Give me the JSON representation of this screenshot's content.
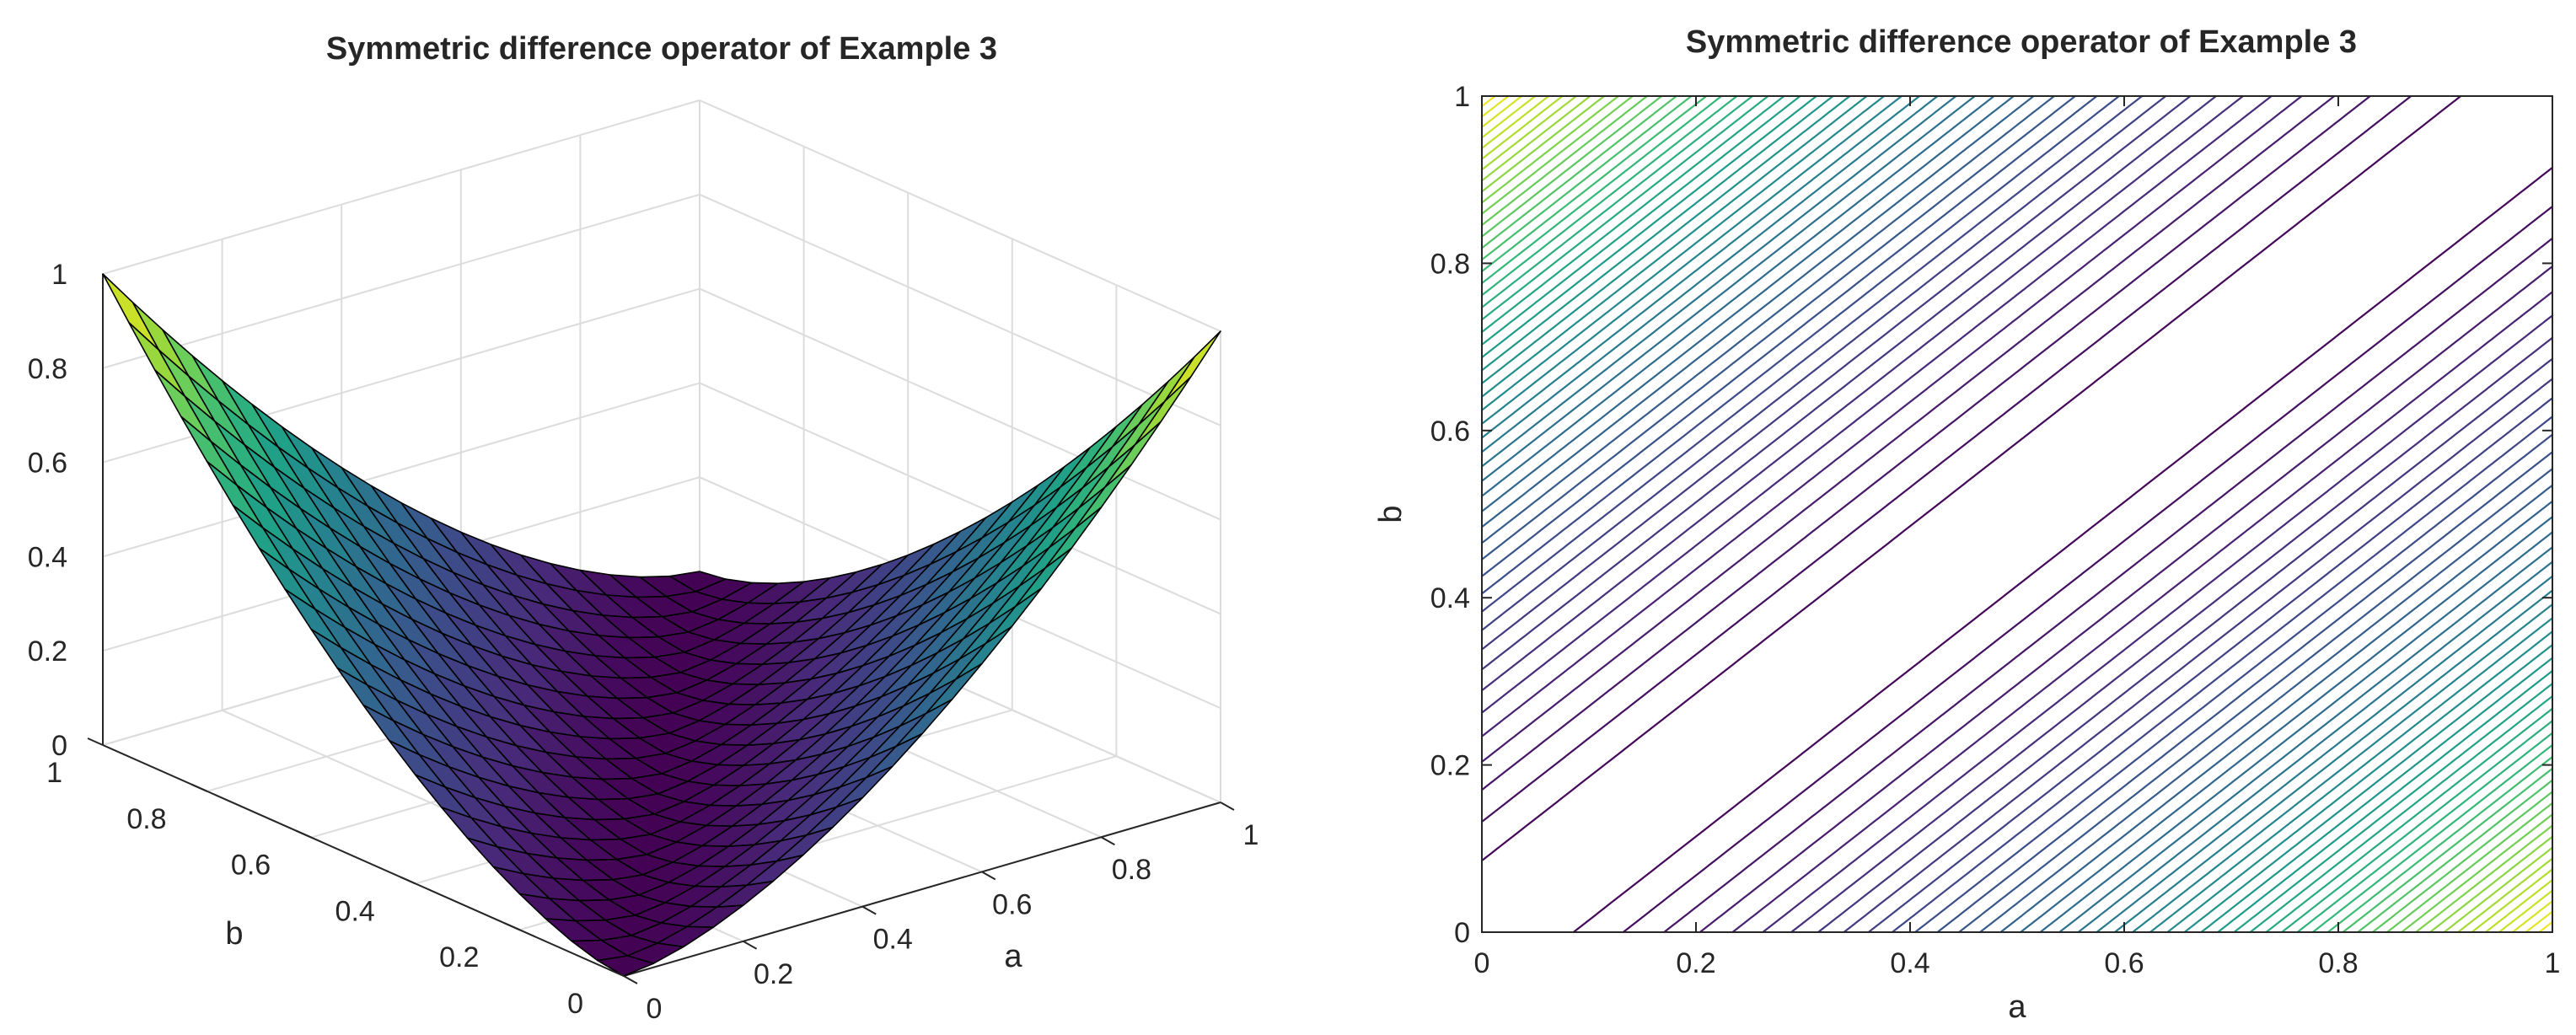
{
  "chart_data": [
    {
      "type": "surface",
      "title": "Symmetric difference operator of Example 3",
      "xlabel": "a",
      "ylabel": "b",
      "zlabel": "",
      "xlim": [
        0,
        1
      ],
      "ylim": [
        0,
        1
      ],
      "zlim": [
        0,
        1
      ],
      "x_ticks": [
        "0",
        "0.2",
        "0.4",
        "0.6",
        "0.8",
        "1"
      ],
      "y_ticks": [
        "0",
        "0.2",
        "0.4",
        "0.6",
        "0.8",
        "1"
      ],
      "z_ticks": [
        "0",
        "0.2",
        "0.4",
        "0.6",
        "0.8",
        "1"
      ],
      "grid": true,
      "grid_steps": 20,
      "colormap": [
        "#440154",
        "#482878",
        "#3e4989",
        "#31688e",
        "#26828e",
        "#1f9e89",
        "#35b779",
        "#6ece58",
        "#b5de2b",
        "#fde725"
      ],
      "edge_color": "#000000",
      "corner_values": [
        {
          "a": 0,
          "b": 0,
          "z": 0
        },
        {
          "a": 1,
          "b": 0,
          "z": 1
        },
        {
          "a": 0,
          "b": 1,
          "z": 1
        },
        {
          "a": 1,
          "b": 1,
          "z": 0
        }
      ]
    },
    {
      "type": "contour",
      "title": "Symmetric difference operator of Example 3",
      "xlabel": "a",
      "ylabel": "b",
      "xlim": [
        0,
        1
      ],
      "ylim": [
        0,
        1
      ],
      "x_ticks": [
        "0",
        "0.2",
        "0.4",
        "0.6",
        "0.8",
        "1"
      ],
      "y_ticks": [
        "0",
        "0.2",
        "0.4",
        "0.6",
        "0.8",
        "1"
      ],
      "levels": 50,
      "level_range": [
        0,
        1
      ],
      "grid": false,
      "box": true,
      "colormap": [
        "#440154",
        "#482878",
        "#3e4989",
        "#31688e",
        "#26828e",
        "#1f9e89",
        "#35b779",
        "#6ece58",
        "#b5de2b",
        "#fde725"
      ]
    }
  ]
}
